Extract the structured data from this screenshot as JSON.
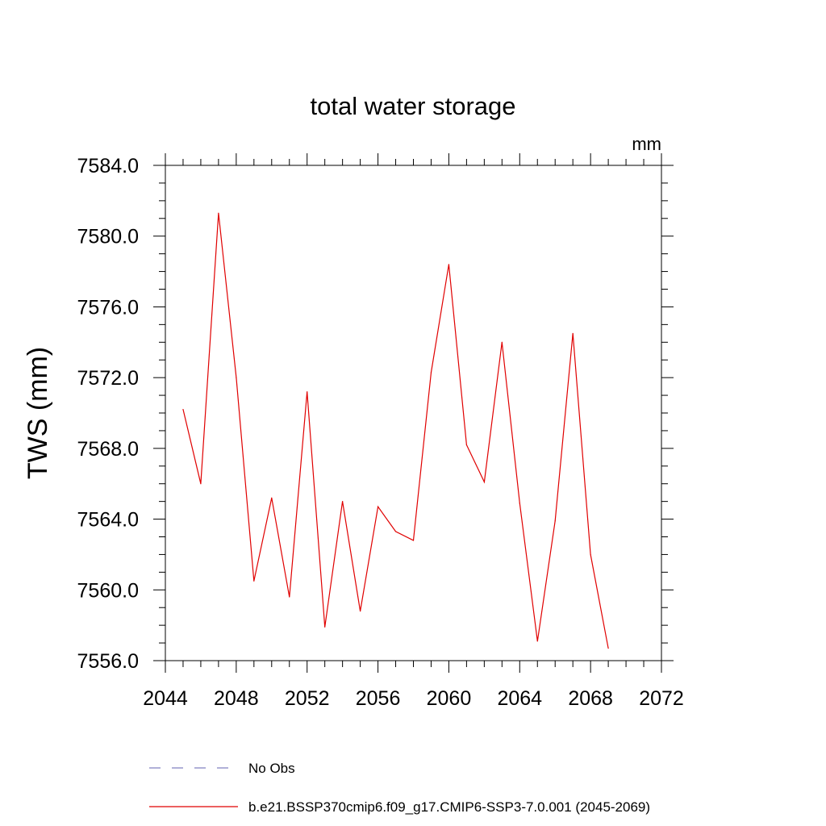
{
  "chart_data": {
    "type": "line",
    "title": "total water storage",
    "units_label": "mm",
    "ylabel": "TWS  (mm)",
    "xlabel": "",
    "xlim": [
      2044,
      2072
    ],
    "ylim": [
      7556.0,
      7584.0
    ],
    "x_ticks": [
      "2044",
      "2048",
      "2052",
      "2056",
      "2060",
      "2064",
      "2068",
      "2072"
    ],
    "y_ticks": [
      "7556.0",
      "7560.0",
      "7564.0",
      "7568.0",
      "7572.0",
      "7576.0",
      "7580.0",
      "7584.0"
    ],
    "grid": false,
    "legend_placement": "bottom",
    "legend": [
      {
        "name": "No Obs",
        "style": "dashed",
        "color": "#8080c0"
      },
      {
        "name": "b.e21.BSSP370cmip6.f09_g17.CMIP6-SSP3-7.0.001 (2045-2069)",
        "style": "solid",
        "color": "#e00000"
      }
    ],
    "series": [
      {
        "name": "b.e21.BSSP370cmip6.f09_g17.CMIP6-SSP3-7.0.001 (2045-2069)",
        "color": "#e00000",
        "x": [
          2045,
          2046,
          2047,
          2048,
          2049,
          2050,
          2051,
          2052,
          2053,
          2054,
          2055,
          2056,
          2057,
          2058,
          2059,
          2060,
          2061,
          2062,
          2063,
          2064,
          2065,
          2066,
          2067,
          2068,
          2069
        ],
        "values": [
          7570.2,
          7566.0,
          7581.3,
          7572.0,
          7560.5,
          7565.2,
          7559.6,
          7571.2,
          7557.9,
          7565.0,
          7558.8,
          7564.7,
          7563.3,
          7562.8,
          7572.3,
          7578.4,
          7568.2,
          7566.1,
          7574.0,
          7564.9,
          7557.1,
          7563.9,
          7574.5,
          7562.0,
          7556.7
        ]
      }
    ]
  }
}
